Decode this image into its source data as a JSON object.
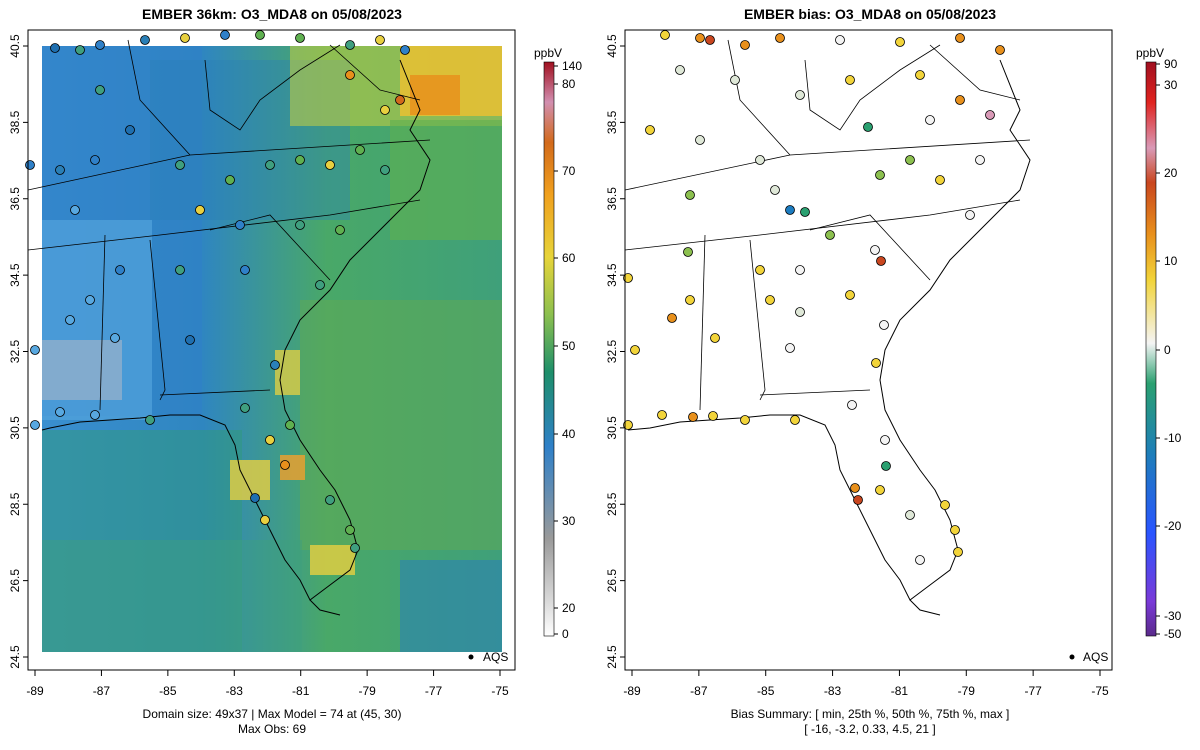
{
  "left_panel": {
    "title": "EMBER 36km: O3_MDA8 on 05/08/2023",
    "colorbar_unit": "ppbV",
    "colorbar_ticks": [
      "140",
      "80",
      "70",
      "60",
      "50",
      "40",
      "30",
      "20",
      "0"
    ],
    "legend_label": "AQS",
    "footer_line1": "Domain size: 49x37 | Max Model = 74 at (45, 30)",
    "footer_line2": "Max Obs: 69"
  },
  "right_panel": {
    "title": "EMBER bias: O3_MDA8 on 05/08/2023",
    "colorbar_unit": "ppbV",
    "colorbar_ticks": [
      "90",
      "30",
      "20",
      "10",
      "0",
      "-10",
      "-20",
      "-30",
      "-50"
    ],
    "legend_label": "AQS",
    "footer_line1": "Bias Summary: [ min, 25th %, 50th %, 75th %, max ]",
    "footer_line2": "[ -16,   -3.2,   0.33,   4.5,   21 ]"
  },
  "axes": {
    "lat_ticks": [
      "40.5",
      "38.5",
      "36.5",
      "34.5",
      "32.5",
      "30.5",
      "28.5",
      "26.5",
      "24.5"
    ],
    "lon_ticks": [
      "-89",
      "-87",
      "-85",
      "-83",
      "-81",
      "-79",
      "-77",
      "-75"
    ]
  },
  "colors": {
    "ozone_scale": [
      "#f2f2f2",
      "#9b9b9b",
      "#3f8fd2",
      "#1f6fb0",
      "#1e8f6a",
      "#52a85a",
      "#8cc04f",
      "#e7d43a",
      "#f0a01e",
      "#d26a1c",
      "#b83a2a",
      "#d28fb0",
      "#b2182b"
    ],
    "bias_scale": [
      "#5a2a8a",
      "#3060ff",
      "#1c7cc0",
      "#2aa070",
      "#f4f4f4",
      "#f2d43a",
      "#e8901c",
      "#c9461f",
      "#d99ab7",
      "#e0231f",
      "#b2182b"
    ]
  }
}
